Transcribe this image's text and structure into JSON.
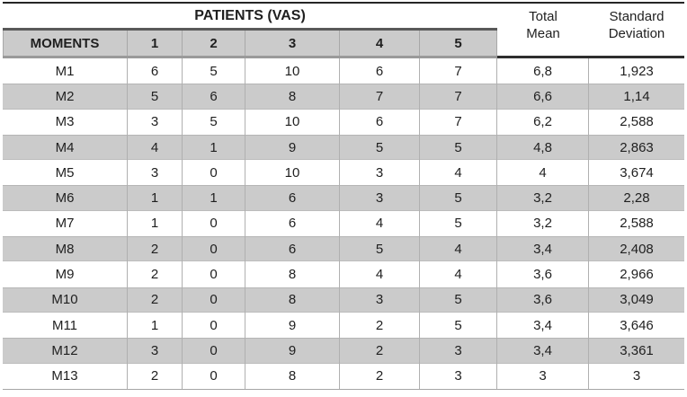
{
  "chart_data": {
    "type": "table",
    "title": "PATIENTS (VAS)",
    "row_header_label": "MOMENTS",
    "columns": [
      "MOMENTS",
      "1",
      "2",
      "3",
      "4",
      "5",
      "Total Mean",
      "Standard Deviation"
    ],
    "rows": [
      [
        "M1",
        "6",
        "5",
        "10",
        "6",
        "7",
        "6,8",
        "1,923"
      ],
      [
        "M2",
        "5",
        "6",
        "8",
        "7",
        "7",
        "6,6",
        "1,14"
      ],
      [
        "M3",
        "3",
        "5",
        "10",
        "6",
        "7",
        "6,2",
        "2,588"
      ],
      [
        "M4",
        "4",
        "1",
        "9",
        "5",
        "5",
        "4,8",
        "2,863"
      ],
      [
        "M5",
        "3",
        "0",
        "10",
        "3",
        "4",
        "4",
        "3,674"
      ],
      [
        "M6",
        "1",
        "1",
        "6",
        "3",
        "5",
        "3,2",
        "2,28"
      ],
      [
        "M7",
        "1",
        "0",
        "6",
        "4",
        "5",
        "3,2",
        "2,588"
      ],
      [
        "M8",
        "2",
        "0",
        "6",
        "5",
        "4",
        "3,4",
        "2,408"
      ],
      [
        "M9",
        "2",
        "0",
        "8",
        "4",
        "4",
        "3,6",
        "2,966"
      ],
      [
        "M10",
        "2",
        "0",
        "8",
        "3",
        "5",
        "3,6",
        "3,049"
      ],
      [
        "M11",
        "1",
        "0",
        "9",
        "2",
        "5",
        "3,4",
        "3,646"
      ],
      [
        "M12",
        "3",
        "0",
        "9",
        "2",
        "3",
        "3,4",
        "3,361"
      ],
      [
        "M13",
        "2",
        "0",
        "8",
        "2",
        "3",
        "3",
        "3"
      ]
    ]
  },
  "colors": {
    "band_gray": "#cbcbcb",
    "grid_line": "#b0b0b0",
    "top_rule": "#262626",
    "header_thick_rule": "#595959",
    "text": "#1f1f1f"
  }
}
